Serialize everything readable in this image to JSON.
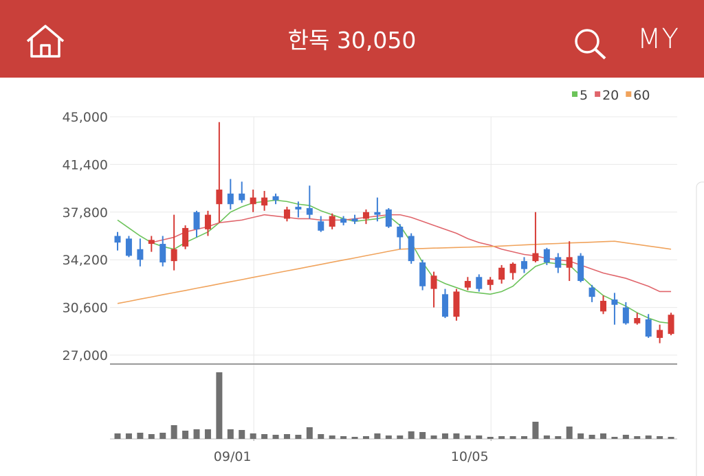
{
  "header": {
    "title": "한독 30,050",
    "my": "MY"
  },
  "chart_data": {
    "type": "candlestick",
    "categories": [
      null,
      null,
      null,
      null,
      null,
      null,
      null,
      null,
      null,
      null,
      null,
      null,
      "09/01",
      null,
      null,
      null,
      null,
      null,
      null,
      null,
      null,
      null,
      null,
      null,
      null,
      null,
      null,
      null,
      null,
      null,
      null,
      null,
      null,
      "10/05",
      null,
      null,
      null,
      null,
      null,
      null,
      null,
      null,
      null,
      null,
      null,
      null,
      null,
      null,
      null,
      null
    ],
    "open": [
      36000,
      35800,
      35000,
      35400,
      35400,
      34100,
      35200,
      37800,
      36500,
      38400,
      39200,
      39200,
      38400,
      38300,
      39000,
      37300,
      38200,
      38100,
      37100,
      36700,
      37300,
      37300,
      37300,
      37800,
      38000,
      36700,
      36000,
      34000,
      32000,
      31600,
      29900,
      32100,
      32900,
      32300,
      32700,
      33200,
      34100,
      34100,
      35000,
      34400,
      33600,
      34500,
      32100,
      30300,
      31200,
      30600,
      29400,
      29700,
      28300,
      28600
    ],
    "high": [
      36300,
      36000,
      35800,
      36000,
      36000,
      37600,
      36800,
      37900,
      37900,
      44600,
      40300,
      40100,
      39500,
      39400,
      39200,
      38200,
      38600,
      39800,
      37500,
      37700,
      37500,
      37600,
      38000,
      38900,
      38100,
      36900,
      36200,
      34200,
      33300,
      32000,
      32000,
      32900,
      33100,
      32900,
      33800,
      34000,
      34400,
      37800,
      35100,
      34700,
      35600,
      34700,
      32300,
      31500,
      31700,
      31000,
      30200,
      30100,
      29300,
      30200
    ],
    "low": [
      34900,
      34400,
      33700,
      34800,
      33700,
      33400,
      35000,
      35900,
      36000,
      37000,
      38000,
      38500,
      37800,
      37900,
      38400,
      37100,
      37400,
      37300,
      36300,
      36500,
      36800,
      36900,
      36900,
      37100,
      36600,
      35000,
      33900,
      31900,
      30600,
      29800,
      29600,
      31900,
      31800,
      31900,
      32400,
      32700,
      33200,
      34000,
      33800,
      33200,
      32600,
      32500,
      31000,
      30100,
      29300,
      29300,
      29300,
      28300,
      27900,
      28500
    ],
    "close": [
      35500,
      34500,
      34200,
      35700,
      34000,
      35000,
      36600,
      36500,
      37600,
      39500,
      38400,
      38700,
      38900,
      38900,
      38700,
      38000,
      38000,
      37600,
      36400,
      37500,
      37000,
      37100,
      37800,
      37600,
      36700,
      35900,
      34100,
      32200,
      33000,
      29900,
      31800,
      32600,
      32000,
      32700,
      33600,
      33900,
      33500,
      34700,
      34000,
      33600,
      34400,
      32600,
      31400,
      31100,
      30800,
      29400,
      29800,
      28400,
      28900,
      30050
    ],
    "up_color": "#d63b36",
    "down_color": "#3d7fd6",
    "series": [
      {
        "name": "5",
        "color": "#6cc35a",
        "values": [
          37200,
          36600,
          36000,
          35500,
          35200,
          35000,
          35500,
          35900,
          36300,
          37000,
          37800,
          38200,
          38500,
          38600,
          38700,
          38600,
          38400,
          38300,
          37900,
          37600,
          37300,
          37100,
          37200,
          37300,
          37500,
          36800,
          35500,
          34000,
          32800,
          32400,
          32100,
          31800,
          31700,
          31600,
          31800,
          32200,
          33000,
          33700,
          34000,
          33900,
          33800,
          33000,
          32200,
          31500,
          31100,
          30700,
          30200,
          29800,
          29500,
          29400
        ]
      },
      {
        "name": "20",
        "color": "#e0656b",
        "values": [
          null,
          null,
          null,
          35500,
          35700,
          35900,
          36300,
          36500,
          36700,
          37000,
          37100,
          37200,
          37400,
          37600,
          37500,
          37400,
          37300,
          37300,
          37200,
          37200,
          37200,
          37300,
          37400,
          37500,
          37600,
          37600,
          37400,
          37100,
          36800,
          36500,
          36200,
          35800,
          35500,
          35300,
          35000,
          34800,
          34600,
          34500,
          34300,
          34200,
          34100,
          33800,
          33500,
          33200,
          33000,
          32800,
          32500,
          32200,
          31800,
          31800
        ]
      },
      {
        "name": "60",
        "color": "#f0a35c",
        "values": [
          30900,
          31060,
          31230,
          31390,
          31560,
          31720,
          31880,
          32050,
          32210,
          32380,
          32540,
          32700,
          32870,
          33030,
          33200,
          33360,
          33520,
          33690,
          33850,
          34020,
          34180,
          34340,
          34510,
          34670,
          34840,
          35000,
          35030,
          35050,
          35080,
          35100,
          35130,
          35150,
          35180,
          35200,
          35240,
          35280,
          35320,
          35360,
          35400,
          35430,
          35470,
          35500,
          35530,
          35570,
          35600,
          35480,
          35360,
          35240,
          35120,
          35000
        ]
      }
    ],
    "volume": {
      "color": "#707070",
      "values": [
        8,
        8,
        9,
        7,
        9,
        20,
        12,
        14,
        14,
        97,
        14,
        13,
        8,
        7,
        6,
        7,
        6,
        17,
        7,
        5,
        4,
        3,
        4,
        8,
        5,
        5,
        11,
        10,
        5,
        8,
        8,
        5,
        5,
        3,
        4,
        4,
        4,
        25,
        5,
        4,
        18,
        8,
        6,
        8,
        3,
        6,
        4,
        5,
        4,
        3
      ]
    },
    "ylim": [
      27000,
      45000
    ],
    "yticks": [
      {
        "value": 27000,
        "label": "27,000"
      },
      {
        "value": 30600,
        "label": "30,600"
      },
      {
        "value": 34200,
        "label": "34,200"
      },
      {
        "value": 37800,
        "label": "37,800"
      },
      {
        "value": 41400,
        "label": "41,400"
      },
      {
        "value": 45000,
        "label": "45,000"
      }
    ],
    "grid": true
  }
}
